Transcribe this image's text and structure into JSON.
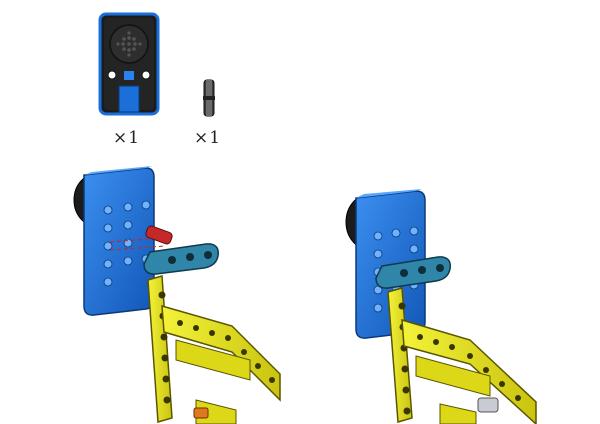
{
  "parts_list": [
    {
      "name": "speaker-module",
      "quantity": "×1"
    },
    {
      "name": "connector-pin",
      "quantity": "×1"
    }
  ],
  "colors": {
    "module_blue": "#1a6fd8",
    "module_dark": "#0b3a78",
    "beam_yellow": "#e8e420",
    "beam_teal": "#2f86a8",
    "pin_red": "#c42828",
    "bush_orange": "#e07820",
    "outline": "#111111"
  }
}
